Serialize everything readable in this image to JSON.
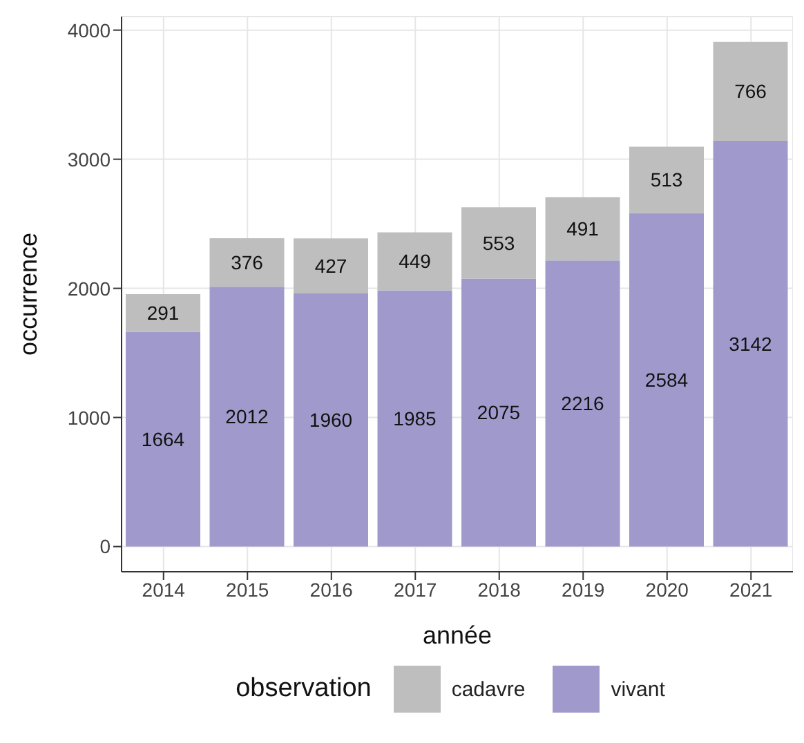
{
  "chart_data": {
    "type": "bar",
    "xlabel": "année",
    "ylabel": "occurrence",
    "legend_title": "observation",
    "categories": [
      "2014",
      "2015",
      "2016",
      "2017",
      "2018",
      "2019",
      "2020",
      "2021"
    ],
    "series": [
      {
        "name": "vivant",
        "color": "#9f9acb",
        "values": [
          1664,
          2012,
          1960,
          1985,
          2075,
          2216,
          2584,
          3142
        ]
      },
      {
        "name": "cadavre",
        "color": "#bebebe",
        "values": [
          291,
          376,
          427,
          449,
          553,
          491,
          513,
          766
        ]
      }
    ],
    "stacked": true,
    "ylim": [
      -195,
      4105
    ],
    "yticks": [
      0,
      1000,
      2000,
      3000,
      4000
    ],
    "grid": true,
    "legend": "bottom",
    "data_labels": true
  }
}
